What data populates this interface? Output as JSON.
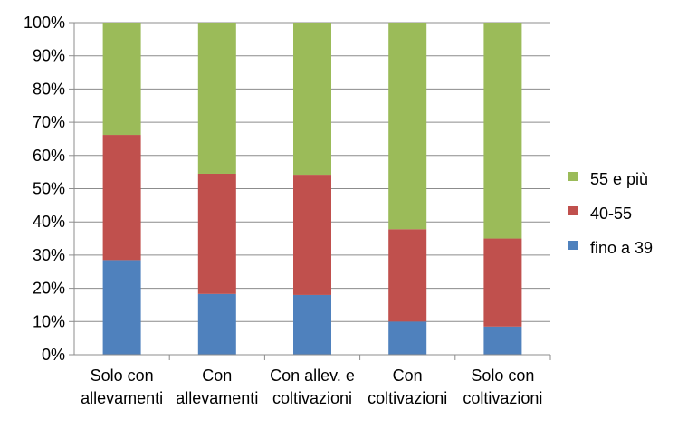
{
  "chart_data": {
    "type": "bar",
    "stacked": true,
    "percent": true,
    "categories": [
      [
        "Solo con",
        "allevamenti"
      ],
      [
        "Con",
        "allevamenti"
      ],
      [
        "Con allev. e",
        "coltivazioni"
      ],
      [
        "Con",
        "coltivazioni"
      ],
      [
        "Solo con",
        "coltivazioni"
      ]
    ],
    "series": [
      {
        "name": "fino a 39",
        "color": "#4f81bd",
        "values": [
          28.5,
          18.3,
          18.0,
          10.0,
          8.5
        ]
      },
      {
        "name": "40-55",
        "color": "#c0504d",
        "values": [
          37.7,
          36.2,
          36.2,
          27.8,
          26.5
        ]
      },
      {
        "name": "55 e più",
        "color": "#9bbb59",
        "values": [
          33.8,
          45.5,
          45.8,
          62.2,
          65.0
        ]
      }
    ],
    "yticks": [
      "0%",
      "10%",
      "20%",
      "30%",
      "40%",
      "50%",
      "60%",
      "70%",
      "80%",
      "90%",
      "100%"
    ],
    "ylim": [
      0,
      100
    ],
    "grid": true,
    "legend": "right"
  }
}
